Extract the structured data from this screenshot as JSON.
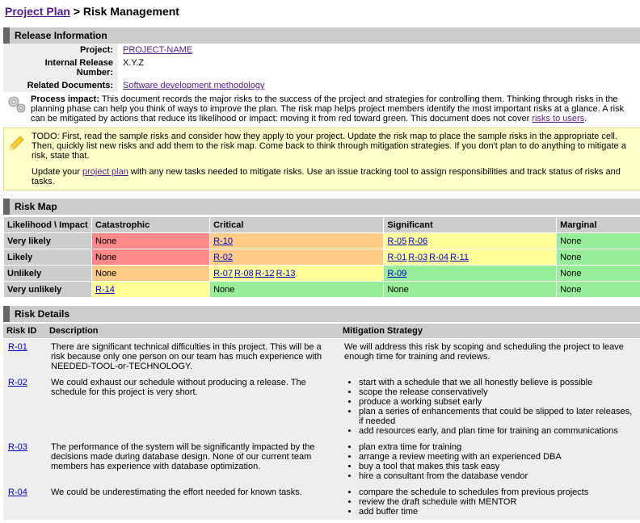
{
  "breadcrumb": {
    "parent": "Project Plan",
    "current": "Risk Management"
  },
  "sections": {
    "release_info": "Release Information",
    "risk_map": "Risk Map",
    "risk_details": "Risk Details"
  },
  "release_info": {
    "rows": [
      {
        "label": "Project:",
        "value": "PROJECT-NAME",
        "link": true
      },
      {
        "label": "Internal Release Number:",
        "value": "X.Y.Z",
        "link": false
      },
      {
        "label": "Related Documents:",
        "value": "Software development methodology",
        "link": true
      }
    ]
  },
  "process_impact": {
    "label": "Process impact:",
    "text": "This document records the major risks to the success of the project and strategies for controlling them. Thinking through risks in the planning phase can help you think of ways to improve the plan. The risk map helps project members identify the most important risks at a glance. A risk can be mitigated by actions that reduce its likelihood or impact: moving it from red toward green. This document does not cover ",
    "link_text": "risks to users",
    "after": "."
  },
  "todo": {
    "text1": "TODO: First, read the sample risks and consider how they apply to your project. Update the risk map to place the sample risks in the appropriate cell. Then, quickly list new risks and add them to the risk map. Come back to think through mitigation strategies. If you don't plan to do anything to mitigate a risk, state that.",
    "text2a": "Update your ",
    "text2link": "project plan",
    "text2b": " with any new tasks needed to mitigate risks. Use an issue tracking tool to assign responsibilities and track status of risks and tasks."
  },
  "risk_map": {
    "corner": "Likelihood \\ Impact",
    "columns": [
      "Catastrophic",
      "Critical",
      "Significant",
      "Marginal"
    ],
    "rows": [
      {
        "label": "Very likely",
        "cells": [
          {
            "bg": "#ff8888",
            "risks": [],
            "none": "None"
          },
          {
            "bg": "#ffcc88",
            "risks": [
              "R-10"
            ]
          },
          {
            "bg": "#ffff99",
            "risks": [
              "R-05",
              "R-06"
            ]
          },
          {
            "bg": "#99ee99",
            "risks": [],
            "none": "None"
          }
        ]
      },
      {
        "label": "Likely",
        "cells": [
          {
            "bg": "#ff8888",
            "risks": [],
            "none": "None"
          },
          {
            "bg": "#ffcc88",
            "risks": [
              "R-02"
            ]
          },
          {
            "bg": "#ffff99",
            "risks": [
              "R-01",
              "R-03",
              "R-04",
              "R-11"
            ]
          },
          {
            "bg": "#99ee99",
            "risks": [],
            "none": "None"
          }
        ]
      },
      {
        "label": "Unlikely",
        "cells": [
          {
            "bg": "#ffcc88",
            "risks": [],
            "none": "None"
          },
          {
            "bg": "#ffff99",
            "risks": [
              "R-07",
              "R-08",
              "R-12",
              "R-13"
            ]
          },
          {
            "bg": "#99ee99",
            "risks": [
              "R-09"
            ]
          },
          {
            "bg": "#99ee99",
            "risks": [],
            "none": "None"
          }
        ]
      },
      {
        "label": "Very unlikely",
        "cells": [
          {
            "bg": "#ffff99",
            "risks": [
              "R-14"
            ]
          },
          {
            "bg": "#99ee99",
            "risks": [],
            "none": "None"
          },
          {
            "bg": "#99ee99",
            "risks": [],
            "none": "None"
          },
          {
            "bg": "#99ee99",
            "risks": [],
            "none": "None"
          }
        ]
      }
    ]
  },
  "risk_details": {
    "headers": [
      "Risk ID",
      "Description",
      "Mitigation Strategy"
    ],
    "rows": [
      {
        "id": "R-01",
        "desc": "There are significant technical difficulties in this project. This will be a risk because only one person on our team has much experience with NEEDED-TOOL-or-TECHNOLOGY.",
        "mitigation_text": "We will address this risk by scoping and scheduling the project to leave enough time for training and reviews."
      },
      {
        "id": "R-02",
        "desc": "We could exhaust our schedule without producing a release. The schedule for this project is very short.",
        "mitigation_list": [
          "start with a schedule that we all honestly believe is possible",
          "scope the release conservatively",
          "produce a working subset early",
          "plan a series of enhancements that could be slipped to later releases, if needed",
          "add resources early, and plan time for training an communications"
        ]
      },
      {
        "id": "R-03",
        "desc": "The performance of the system will be significantly impacted by the decisions made during database design. None of our current team members has experience with database optimization.",
        "mitigation_list": [
          "plan extra time for training",
          "arrange a review meeting with an experienced DBA",
          "buy a tool that makes this task easy",
          "hire a consultant from the database vendor"
        ]
      },
      {
        "id": "R-04",
        "desc": "We could be underestimating the effort needed for known tasks.",
        "mitigation_list": [
          "compare the schedule to schedules from previous projects",
          "review the draft schedule with MENTOR",
          "add buffer time"
        ]
      }
    ]
  }
}
